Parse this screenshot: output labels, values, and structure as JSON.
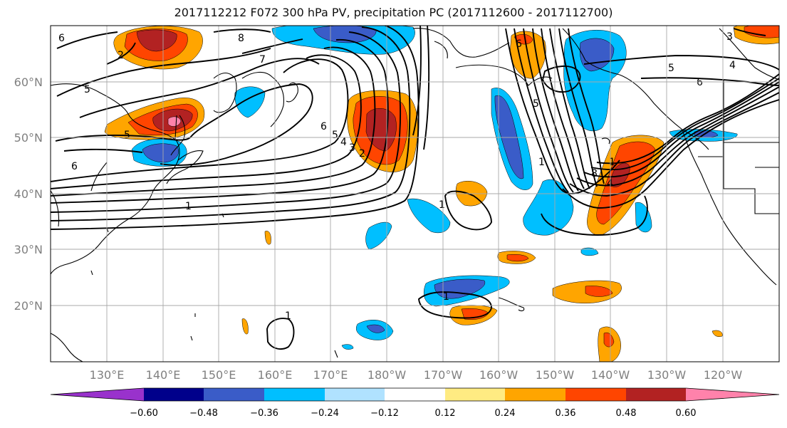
{
  "title": "2017112212 F072 300 hPa PV, precipitation PC (2017112600 - 2017112700)",
  "map": {
    "lat_labels": [
      "60°N",
      "50°N",
      "40°N",
      "30°N",
      "20°N"
    ],
    "lon_labels": [
      "130°E",
      "140°E",
      "150°E",
      "160°E",
      "170°E",
      "180°W",
      "170°W",
      "160°W",
      "150°W",
      "140°W",
      "130°W",
      "120°W"
    ],
    "pv_contour_labels": [
      "6",
      "2",
      "8",
      "7",
      "5",
      "5",
      "6",
      "1",
      "6",
      "5",
      "4",
      "3",
      "2",
      "1",
      "6",
      "5",
      "4",
      "5",
      "6",
      "3",
      "1",
      "8",
      "4",
      "1",
      "1",
      "1"
    ]
  },
  "colorbar": {
    "colors": [
      "#9932cc",
      "#00008b",
      "#3a5cc8",
      "#00bfff",
      "#b0e2ff",
      "#ffffff",
      "#ffeb82",
      "#ffa500",
      "#ff4500",
      "#b22222",
      "#ff82ab"
    ],
    "tick_labels": [
      "−0.60",
      "−0.48",
      "−0.36",
      "−0.24",
      "−0.12",
      "0.12",
      "0.24",
      "0.36",
      "0.48",
      "0.60"
    ]
  }
}
